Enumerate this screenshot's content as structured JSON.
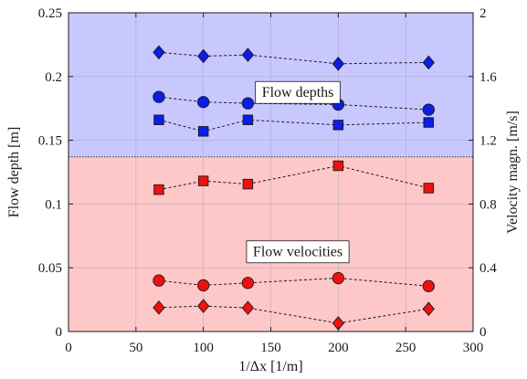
{
  "chart_data": {
    "type": "scatter",
    "xlabel": "1/Δx [1/m]",
    "ylabel_left": "Flow depth [m]",
    "ylabel_right": "Velocity magn. [m/s]",
    "xlim": [
      0,
      300
    ],
    "ylim_left": [
      0,
      0.25
    ],
    "ylim_right": [
      0,
      2
    ],
    "x_ticks": [
      "0",
      "50",
      "100",
      "150",
      "200",
      "250",
      "300"
    ],
    "y_ticks_left": [
      "0",
      "0.05",
      "0.1",
      "0.15",
      "0.2",
      "0.25"
    ],
    "y_ticks_right": [
      "0",
      "0.4",
      "0.8",
      "1.2",
      "1.6",
      "2"
    ],
    "grid": true,
    "regions": [
      {
        "label": "Flow depths",
        "y_from": 0.137,
        "y_to": 0.25,
        "color": "#c8c8ff"
      },
      {
        "label": "Flow velocities",
        "y_from": 0,
        "y_to": 0.137,
        "color": "#ffc8c8"
      }
    ],
    "annotations": [
      {
        "text": "Flow depths",
        "x": 170,
        "y": 0.1875
      },
      {
        "text": "Flow velocities",
        "x": 170,
        "y": 0.0625
      }
    ],
    "series": [
      {
        "axis": "left",
        "marker": "diamond",
        "color": "#0a1ee6",
        "x": [
          67,
          100,
          133,
          200,
          267
        ],
        "values": [
          0.219,
          0.216,
          0.217,
          0.21,
          0.211
        ]
      },
      {
        "axis": "left",
        "marker": "circle",
        "color": "#0a1ee6",
        "x": [
          67,
          100,
          133,
          200,
          267
        ],
        "values": [
          0.184,
          0.18,
          0.179,
          0.178,
          0.174
        ]
      },
      {
        "axis": "left",
        "marker": "square",
        "color": "#0a1ee6",
        "x": [
          67,
          100,
          133,
          200,
          267
        ],
        "values": [
          0.166,
          0.157,
          0.166,
          0.162,
          0.164
        ]
      },
      {
        "axis": "right",
        "marker": "square",
        "color": "#ee1111",
        "x": [
          67,
          100,
          133,
          200,
          267
        ],
        "values": [
          0.89,
          0.945,
          0.925,
          1.04,
          0.9
        ]
      },
      {
        "axis": "right",
        "marker": "circle",
        "color": "#ee1111",
        "x": [
          67,
          100,
          133,
          200,
          267
        ],
        "values": [
          0.32,
          0.29,
          0.305,
          0.335,
          0.285
        ]
      },
      {
        "axis": "right",
        "marker": "diamond",
        "color": "#ee1111",
        "x": [
          67,
          100,
          133,
          200,
          267
        ],
        "values": [
          0.15,
          0.16,
          0.148,
          0.052,
          0.142
        ]
      }
    ]
  }
}
